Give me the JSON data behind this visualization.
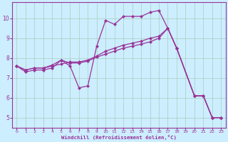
{
  "bg_color": "#cceeff",
  "line_color": "#993399",
  "grid_color": "#aaccbb",
  "xlabel": "Windchill (Refroidissement éolien,°C)",
  "ylabel_ticks": [
    5,
    6,
    7,
    8,
    9,
    10
  ],
  "xlim": [
    -0.5,
    23.5
  ],
  "ylim": [
    4.5,
    10.8
  ],
  "xticks": [
    0,
    1,
    2,
    3,
    4,
    5,
    6,
    7,
    8,
    9,
    10,
    11,
    12,
    13,
    14,
    15,
    16,
    17,
    18,
    19,
    20,
    21,
    22,
    23
  ],
  "series1_x": [
    0,
    1,
    2,
    3,
    4,
    5,
    6,
    7,
    8,
    9,
    10,
    11,
    12,
    13,
    14,
    15,
    16,
    17,
    18,
    20,
    21,
    22,
    23
  ],
  "series1_y": [
    7.6,
    7.3,
    7.4,
    7.4,
    7.5,
    7.9,
    7.6,
    6.5,
    6.6,
    8.6,
    9.9,
    9.7,
    10.1,
    10.1,
    10.1,
    10.3,
    10.4,
    9.5,
    8.5,
    6.1,
    6.1,
    5.0,
    5.0
  ],
  "series2_x": [
    0,
    1,
    2,
    3,
    4,
    5,
    6,
    7,
    8,
    9,
    10,
    11,
    12,
    13,
    14,
    15,
    16,
    17,
    18,
    20,
    21,
    22,
    23
  ],
  "series2_y": [
    7.6,
    7.4,
    7.5,
    7.5,
    7.6,
    7.7,
    7.8,
    7.8,
    7.9,
    8.1,
    8.35,
    8.5,
    8.65,
    8.75,
    8.85,
    9.0,
    9.1,
    9.5,
    8.5,
    6.1,
    6.1,
    5.0,
    5.0
  ],
  "series3_x": [
    0,
    1,
    2,
    3,
    4,
    5,
    6,
    7,
    8,
    9,
    10,
    11,
    12,
    13,
    14,
    15,
    16,
    17,
    18,
    20,
    21,
    22,
    23
  ],
  "series3_y": [
    7.6,
    7.4,
    7.5,
    7.5,
    7.65,
    7.9,
    7.75,
    7.75,
    7.85,
    8.05,
    8.2,
    8.35,
    8.5,
    8.6,
    8.7,
    8.82,
    9.0,
    9.5,
    8.5,
    6.1,
    6.1,
    5.0,
    5.0
  ]
}
